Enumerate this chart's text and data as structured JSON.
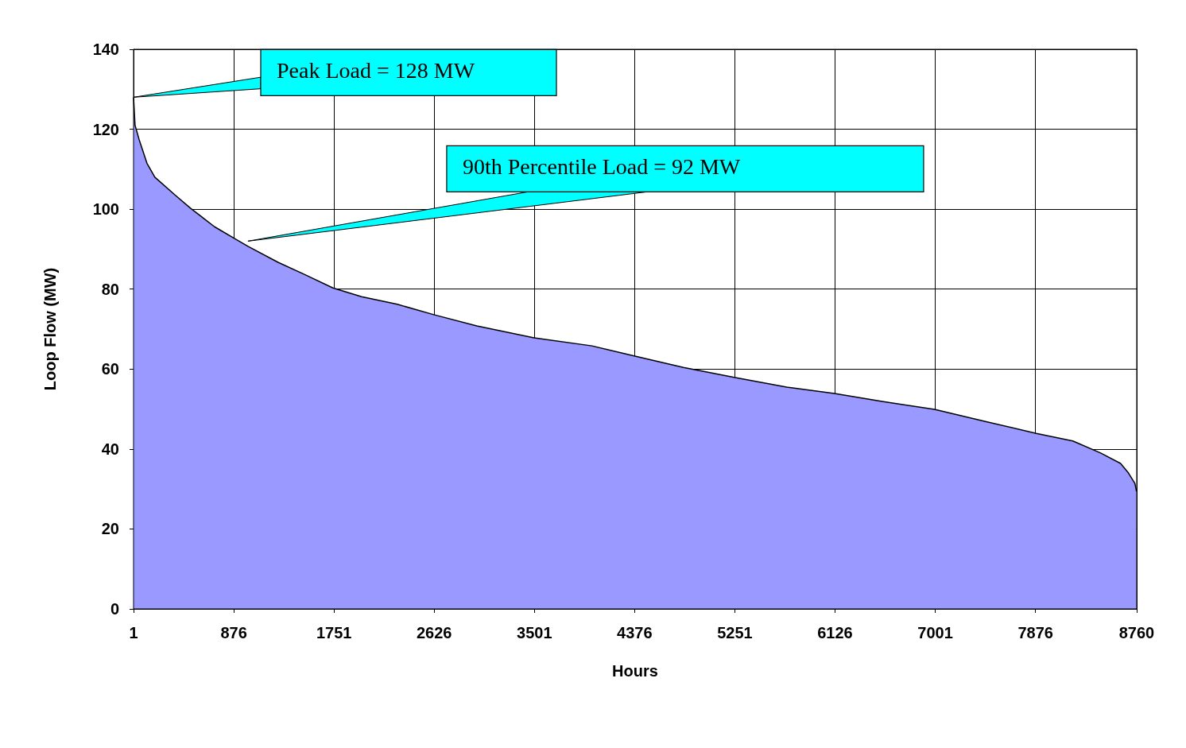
{
  "chart_data": {
    "type": "area",
    "xlabel": "Hours",
    "ylabel": "Loop Flow (MW)",
    "x": [
      1,
      14,
      49,
      118,
      187,
      361,
      500,
      708,
      881,
      1000,
      1263,
      1492,
      1742,
      1992,
      2304,
      2623,
      2998,
      3498,
      4004,
      4386,
      4802,
      5246,
      5704,
      6121,
      6537,
      6995,
      7439,
      7883,
      8202,
      8445,
      8619,
      8688,
      8744,
      8758,
      8760
    ],
    "series": [
      {
        "color": "#9999ff",
        "values": [
          128,
          121,
          117.5,
          111.5,
          108,
          103.6,
          100.2,
          95.6,
          92.7,
          90.7,
          86.7,
          83.7,
          80.3,
          78.1,
          76.2,
          73.6,
          70.8,
          67.8,
          65.8,
          63.2,
          60.4,
          57.9,
          55.5,
          53.9,
          51.9,
          49.9,
          46.9,
          43.9,
          42,
          39,
          36.4,
          34,
          31.4,
          29.4,
          29.4
        ]
      }
    ],
    "xlim": [
      1,
      8760
    ],
    "xticks": [
      1,
      876,
      1751,
      2626,
      3501,
      4376,
      5251,
      6126,
      7001,
      7876,
      8760
    ],
    "ylim": [
      0,
      140
    ],
    "yticks": [
      0,
      20,
      40,
      60,
      80,
      100,
      120,
      140
    ],
    "grid": true,
    "marker": "none",
    "line_style": "solid",
    "annotations": [
      {
        "text": "Peak Load = 128 MW",
        "x": 1,
        "y": 128
      },
      {
        "text": "90th Percentile Load = 92 MW",
        "x": 1000,
        "y": 92
      }
    ]
  }
}
